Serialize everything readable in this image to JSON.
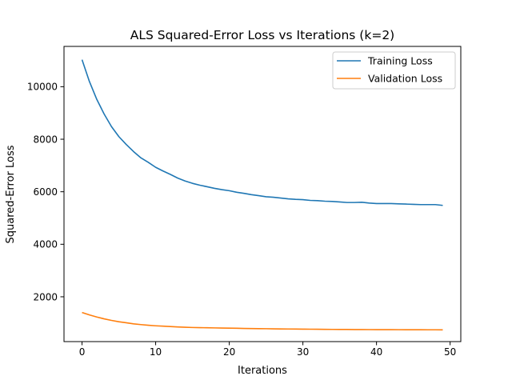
{
  "chart_data": {
    "type": "line",
    "title": "ALS Squared-Error Loss vs Iterations (k=2)",
    "xlabel": "Iterations",
    "ylabel": "Squared-Error Loss",
    "xlim": [
      -2.45,
      51.45
    ],
    "ylim": [
      293,
      11535
    ],
    "xticks": [
      0,
      10,
      20,
      30,
      40,
      50
    ],
    "yticks": [
      2000,
      4000,
      6000,
      8000,
      10000
    ],
    "grid": false,
    "legend_position": "top-right",
    "x": [
      0,
      1,
      2,
      3,
      4,
      5,
      6,
      7,
      8,
      9,
      10,
      11,
      12,
      13,
      14,
      15,
      16,
      17,
      18,
      19,
      20,
      21,
      22,
      23,
      24,
      25,
      26,
      27,
      28,
      29,
      30,
      31,
      32,
      33,
      34,
      35,
      36,
      37,
      38,
      39,
      40,
      41,
      42,
      43,
      44,
      45,
      46,
      47,
      48,
      49
    ],
    "series": [
      {
        "name": "Training Loss",
        "color": "#1f77b4",
        "values": [
          11030,
          10200,
          9520,
          8960,
          8480,
          8100,
          7800,
          7530,
          7290,
          7120,
          6930,
          6790,
          6660,
          6520,
          6410,
          6320,
          6250,
          6190,
          6130,
          6080,
          6040,
          5980,
          5940,
          5890,
          5850,
          5810,
          5790,
          5760,
          5730,
          5710,
          5700,
          5670,
          5660,
          5640,
          5630,
          5610,
          5590,
          5590,
          5600,
          5570,
          5550,
          5550,
          5550,
          5540,
          5530,
          5520,
          5510,
          5510,
          5510,
          5480
        ]
      },
      {
        "name": "Validation Loss",
        "color": "#ff7f0e",
        "values": [
          1400,
          1310,
          1230,
          1160,
          1100,
          1050,
          1010,
          970,
          940,
          915,
          895,
          880,
          865,
          850,
          840,
          830,
          825,
          820,
          815,
          810,
          805,
          800,
          795,
          790,
          787,
          784,
          780,
          776,
          773,
          770,
          768,
          765,
          762,
          760,
          758,
          756,
          755,
          753,
          752,
          750,
          749,
          748,
          747,
          746,
          745,
          744,
          743,
          742,
          742,
          741
        ]
      }
    ]
  }
}
